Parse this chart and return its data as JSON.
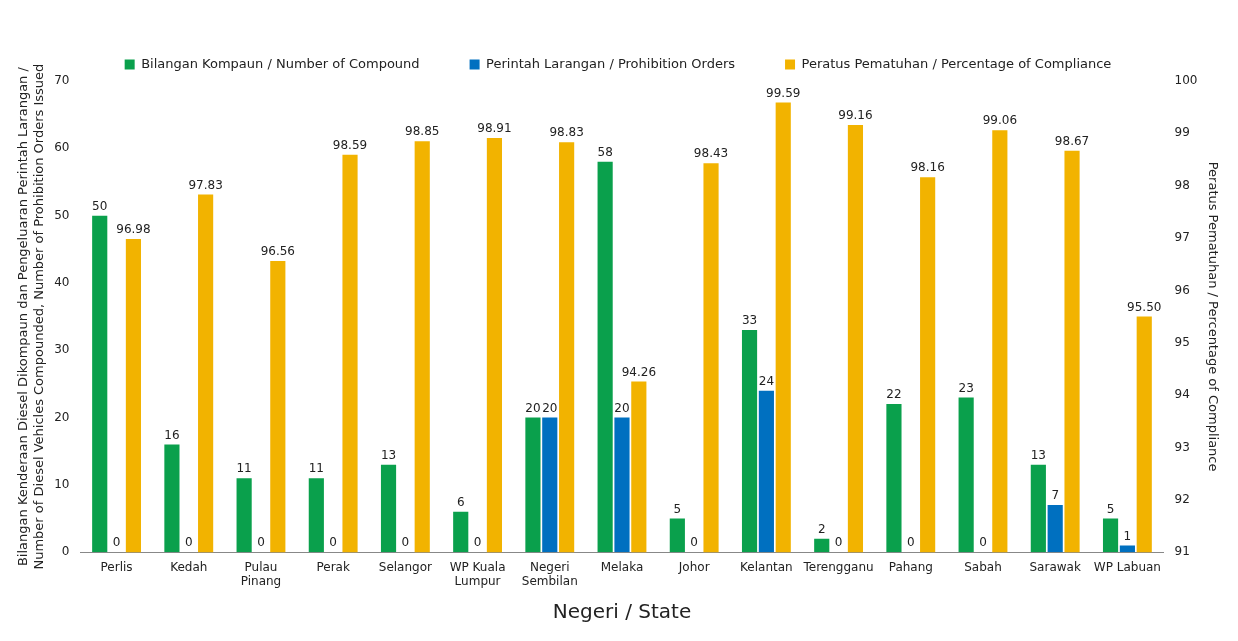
{
  "chart_data": {
    "type": "bar",
    "xlabel": "Negeri / State",
    "ylabel": "Bilangan Kenderaan Diesel Dikompaun dan Pengeluaran Perintah Larangan / Number of Diesel Vehicles Compounded, Number of Prohibition Orders Issued",
    "y2label": "Peratus Pematuhan / Percentage of Compliance",
    "categories": [
      "Perlis",
      "Kedah",
      "Pulau Pinang",
      "Perak",
      "Selangor",
      "WP Kuala Lumpur",
      "Negeri Sembilan",
      "Melaka",
      "Johor",
      "Kelantan",
      "Terengganu",
      "Pahang",
      "Sabah",
      "Sarawak",
      "WP Labuan"
    ],
    "series": [
      {
        "name": "Bilangan Kompaun / Number of Compound",
        "color": "#0aa04c",
        "values": [
          50,
          16,
          11,
          11,
          13,
          6,
          20,
          58,
          5,
          33,
          2,
          22,
          23,
          13,
          5
        ],
        "value_labels": [
          "50",
          "16",
          "11",
          "11",
          "13",
          "6",
          "20",
          "58",
          "5",
          "33",
          "2",
          "22",
          "23",
          "13",
          "5"
        ]
      },
      {
        "name": "Perintah Larangan / Prohibition Orders",
        "color": "#0070c0",
        "values": [
          0,
          0,
          0,
          0,
          0,
          0,
          20,
          20,
          0,
          24,
          0,
          0,
          0,
          7,
          1
        ],
        "value_labels": [
          "0",
          "0",
          "0",
          "0",
          "0",
          "0",
          "20",
          "20",
          "0",
          "24",
          "0",
          "0",
          "0",
          "7",
          "1"
        ]
      },
      {
        "name": "Peratus Pematuhan / Percentage of Compliance",
        "color": "#f2b300",
        "axis": "y2",
        "values": [
          96.98,
          97.83,
          96.56,
          98.59,
          98.85,
          98.91,
          98.83,
          94.26,
          98.43,
          99.59,
          99.16,
          98.16,
          99.06,
          98.67,
          95.5
        ],
        "value_labels": [
          "96.98",
          "97.83",
          "96.56",
          "98.59",
          "98.85",
          "98.91",
          "98.83",
          "94.26",
          "98.43",
          "99.59",
          "99.16",
          "98.16",
          "99.06",
          "98.67",
          "95.50"
        ]
      }
    ],
    "ylim": [
      0,
      70
    ],
    "yticks": [
      0,
      10,
      20,
      30,
      40,
      50,
      60,
      70
    ],
    "y2lim": [
      91,
      100
    ],
    "y2ticks": [
      91,
      92,
      93,
      94,
      95,
      96,
      97,
      98,
      99,
      100
    ],
    "grid": false,
    "legend": "top"
  }
}
